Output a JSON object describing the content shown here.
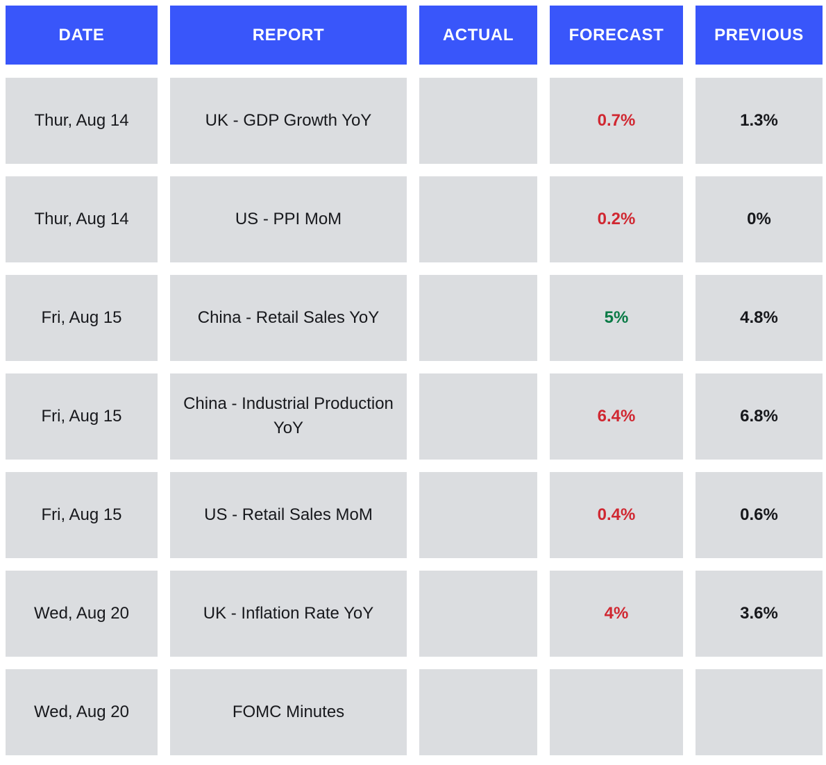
{
  "chart_data": {
    "type": "table",
    "columns": [
      {
        "key": "date",
        "label": "DATE"
      },
      {
        "key": "report",
        "label": "REPORT"
      },
      {
        "key": "actual",
        "label": "ACTUAL"
      },
      {
        "key": "forecast",
        "label": "FORECAST"
      },
      {
        "key": "previous",
        "label": "PREVIOUS"
      }
    ],
    "rows": [
      {
        "date": "Thur, Aug 14",
        "report": "UK - GDP Growth YoY",
        "actual": "",
        "forecast": "0.7%",
        "forecast_color": "red",
        "previous": "1.3%"
      },
      {
        "date": "Thur, Aug 14",
        "report": "US - PPI MoM",
        "actual": "",
        "forecast": "0.2%",
        "forecast_color": "red",
        "previous": "0%"
      },
      {
        "date": "Fri, Aug 15",
        "report": "China - Retail Sales YoY",
        "actual": "",
        "forecast": "5%",
        "forecast_color": "green",
        "previous": "4.8%"
      },
      {
        "date": "Fri, Aug 15",
        "report": "China - Industrial Production YoY",
        "actual": "",
        "forecast": "6.4%",
        "forecast_color": "red",
        "previous": "6.8%"
      },
      {
        "date": "Fri, Aug 15",
        "report": "US - Retail Sales MoM",
        "actual": "",
        "forecast": "0.4%",
        "forecast_color": "red",
        "previous": "0.6%"
      },
      {
        "date": "Wed, Aug 20",
        "report": "UK - Inflation Rate YoY",
        "actual": "",
        "forecast": "4%",
        "forecast_color": "red",
        "previous": "3.6%"
      },
      {
        "date": "Wed, Aug 20",
        "report": "FOMC Minutes",
        "actual": "",
        "forecast": "",
        "forecast_color": null,
        "previous": ""
      }
    ]
  },
  "colors": {
    "header_bg": "#3956FA",
    "header_text": "#FFFFFF",
    "cell_bg": "#DBDDE0",
    "body_text": "#17181C",
    "forecast_red": "#D02731",
    "forecast_green": "#0A7A46",
    "page_bg": "#FFFFFF"
  }
}
